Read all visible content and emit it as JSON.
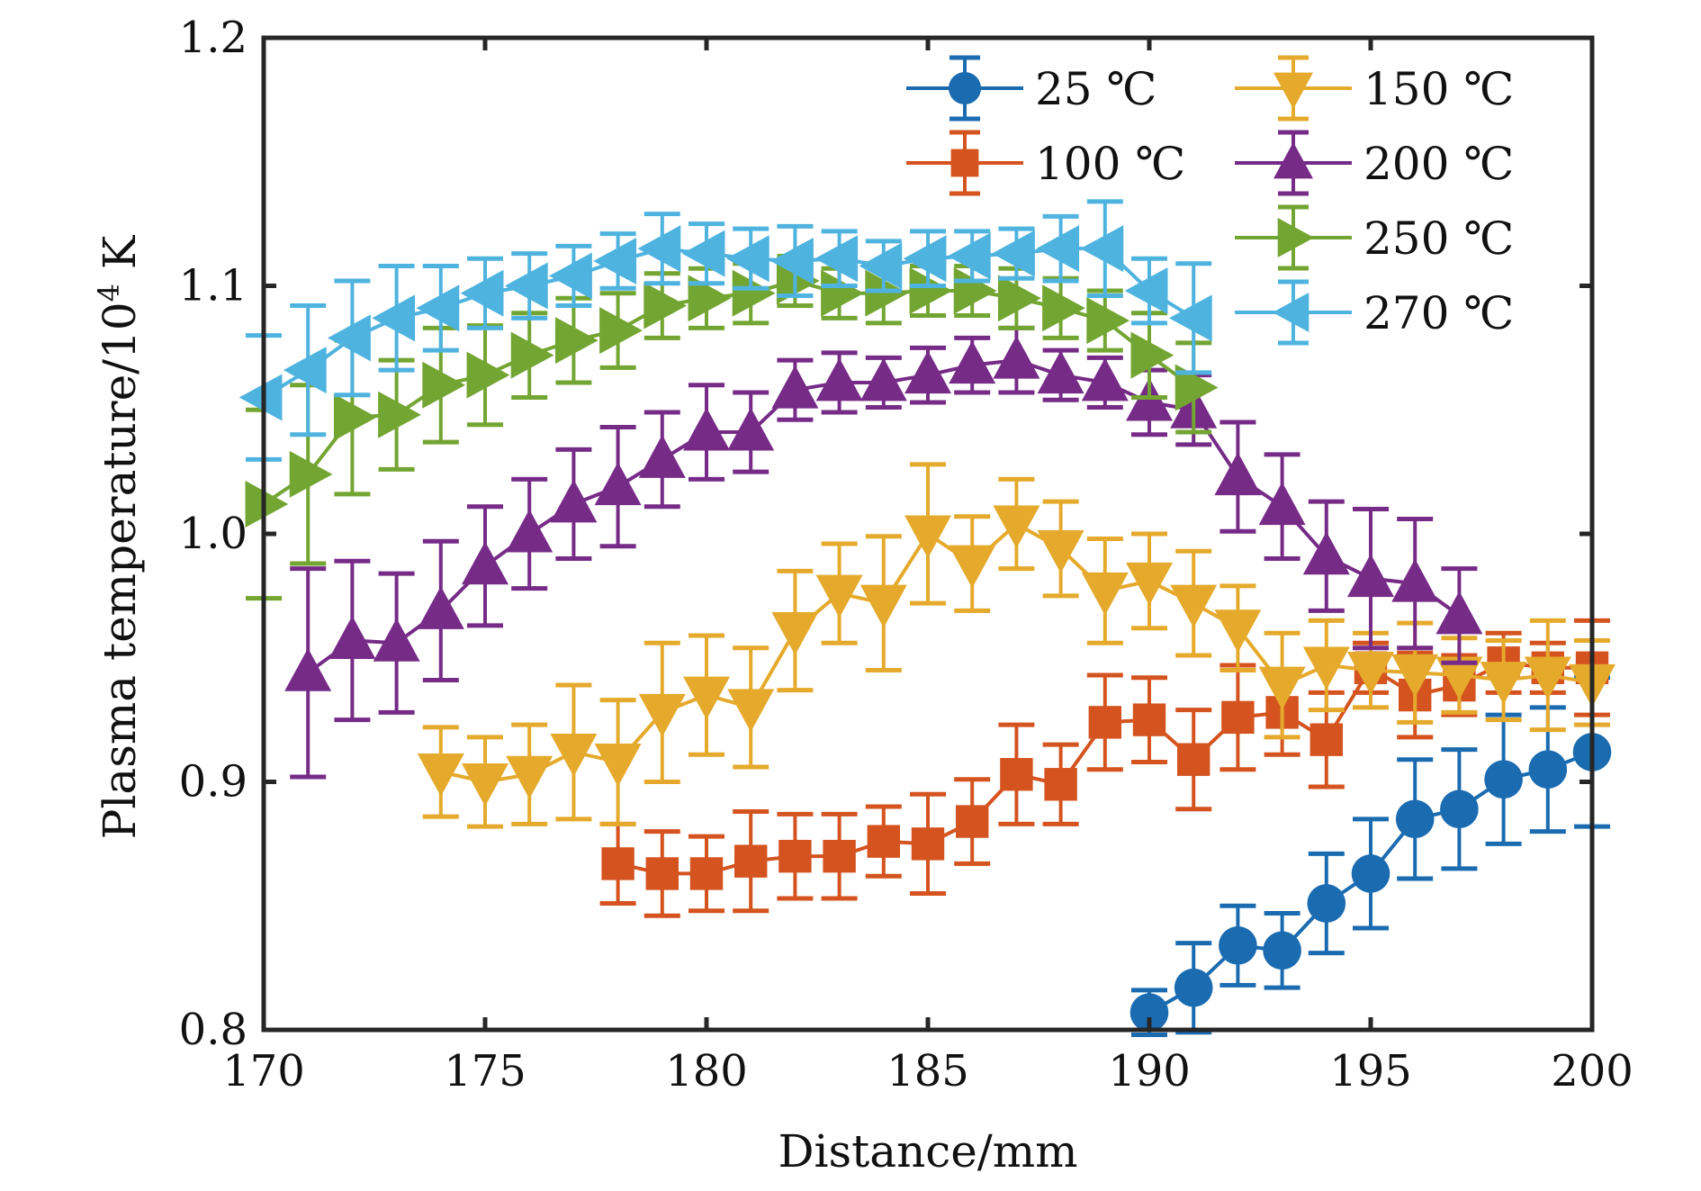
{
  "chart_data": {
    "type": "line",
    "title": "",
    "xlabel": "Distance/mm",
    "ylabel_main": "Plasma temperature/10",
    "ylabel_sup": "4",
    "ylabel_unit": " K",
    "xlim": [
      170,
      200
    ],
    "ylim": [
      0.8,
      1.2
    ],
    "xticks": [
      170,
      175,
      180,
      185,
      190,
      195,
      200
    ],
    "xtick_labels": [
      "170",
      "175",
      "180",
      "185",
      "190",
      "195",
      "200"
    ],
    "yticks": [
      0.8,
      0.9,
      1.0,
      1.1,
      1.2
    ],
    "ytick_labels": [
      "0.8",
      "0.9",
      "1.0",
      "1.1",
      "1.2"
    ],
    "grid": false,
    "legend_position": "top-right",
    "legend_columns": 2,
    "series": [
      {
        "name": "25 ℃",
        "color": "#1a6bb0",
        "marker": "circle",
        "x": [
          190,
          191,
          192,
          193,
          194,
          195,
          196,
          197,
          198,
          199,
          200
        ],
        "y": [
          0.807,
          0.817,
          0.834,
          0.832,
          0.851,
          0.863,
          0.885,
          0.889,
          0.901,
          0.905,
          0.912
        ],
        "err": [
          0.009,
          0.018,
          0.016,
          0.015,
          0.02,
          0.022,
          0.024,
          0.024,
          0.026,
          0.025,
          0.03
        ]
      },
      {
        "name": "100 ℃",
        "color": "#d4531f",
        "marker": "square",
        "x": [
          178,
          179,
          180,
          181,
          182,
          183,
          184,
          185,
          186,
          187,
          188,
          189,
          190,
          191,
          192,
          193,
          194,
          195,
          196,
          197,
          198,
          199,
          200
        ],
        "y": [
          0.867,
          0.863,
          0.863,
          0.868,
          0.87,
          0.87,
          0.876,
          0.875,
          0.884,
          0.903,
          0.899,
          0.924,
          0.925,
          0.909,
          0.926,
          0.928,
          0.917,
          0.946,
          0.935,
          0.939,
          0.948,
          0.946,
          0.946
        ],
        "err": [
          0.016,
          0.017,
          0.015,
          0.02,
          0.017,
          0.017,
          0.014,
          0.02,
          0.017,
          0.02,
          0.016,
          0.019,
          0.017,
          0.02,
          0.021,
          0.017,
          0.019,
          0.01,
          0.017,
          0.012,
          0.012,
          0.01,
          0.019
        ]
      },
      {
        "name": "150 ℃",
        "color": "#e5aa2c",
        "marker": "triangle-down",
        "x": [
          174,
          175,
          176,
          177,
          178,
          179,
          180,
          181,
          182,
          183,
          184,
          185,
          186,
          187,
          188,
          189,
          190,
          191,
          192,
          193,
          194,
          195,
          196,
          197,
          198,
          199,
          200
        ],
        "y": [
          0.904,
          0.9,
          0.903,
          0.912,
          0.908,
          0.928,
          0.935,
          0.93,
          0.961,
          0.976,
          0.972,
          1.0,
          0.988,
          1.004,
          0.994,
          0.977,
          0.981,
          0.972,
          0.962,
          0.939,
          0.947,
          0.945,
          0.944,
          0.943,
          0.941,
          0.943,
          0.94
        ],
        "err": [
          0.018,
          0.018,
          0.02,
          0.027,
          0.025,
          0.028,
          0.024,
          0.024,
          0.024,
          0.02,
          0.027,
          0.028,
          0.019,
          0.018,
          0.019,
          0.021,
          0.019,
          0.021,
          0.017,
          0.021,
          0.018,
          0.015,
          0.02,
          0.015,
          0.016,
          0.022,
          0.017
        ]
      },
      {
        "name": "200 ℃",
        "color": "#762b87",
        "marker": "triangle-up",
        "x": [
          171,
          172,
          173,
          174,
          175,
          176,
          177,
          178,
          179,
          180,
          181,
          182,
          183,
          184,
          185,
          186,
          187,
          188,
          189,
          190,
          191,
          192,
          193,
          194,
          195,
          196,
          197
        ],
        "y": [
          0.944,
          0.957,
          0.956,
          0.969,
          0.987,
          1.0,
          1.012,
          1.019,
          1.03,
          1.041,
          1.041,
          1.058,
          1.061,
          1.061,
          1.064,
          1.068,
          1.07,
          1.064,
          1.061,
          1.053,
          1.05,
          1.023,
          1.011,
          0.991,
          0.982,
          0.98,
          0.967
        ],
        "err": [
          0.042,
          0.032,
          0.028,
          0.028,
          0.024,
          0.022,
          0.022,
          0.024,
          0.019,
          0.019,
          0.016,
          0.012,
          0.012,
          0.01,
          0.011,
          0.011,
          0.013,
          0.01,
          0.01,
          0.013,
          0.014,
          0.022,
          0.021,
          0.022,
          0.028,
          0.026,
          0.019
        ]
      },
      {
        "name": "250 ℃",
        "color": "#73a532",
        "marker": "triangle-right",
        "x": [
          170,
          171,
          172,
          173,
          174,
          175,
          176,
          177,
          178,
          179,
          180,
          181,
          182,
          183,
          184,
          185,
          186,
          187,
          188,
          189,
          190,
          191
        ],
        "y": [
          1.012,
          1.024,
          1.047,
          1.048,
          1.06,
          1.064,
          1.072,
          1.078,
          1.082,
          1.092,
          1.095,
          1.097,
          1.102,
          1.097,
          1.097,
          1.098,
          1.098,
          1.095,
          1.091,
          1.086,
          1.072,
          1.059
        ],
        "err": [
          0.038,
          0.036,
          0.031,
          0.022,
          0.023,
          0.02,
          0.017,
          0.017,
          0.015,
          0.013,
          0.012,
          0.012,
          0.01,
          0.01,
          0.012,
          0.01,
          0.01,
          0.012,
          0.012,
          0.012,
          0.017,
          0.018
        ]
      },
      {
        "name": "270 ℃",
        "color": "#4fb3df",
        "marker": "triangle-left",
        "x": [
          170,
          171,
          172,
          173,
          174,
          175,
          176,
          177,
          178,
          179,
          180,
          181,
          182,
          183,
          184,
          185,
          186,
          187,
          188,
          189,
          190,
          191
        ],
        "y": [
          1.055,
          1.066,
          1.079,
          1.087,
          1.091,
          1.097,
          1.1,
          1.104,
          1.11,
          1.115,
          1.113,
          1.111,
          1.11,
          1.111,
          1.108,
          1.111,
          1.112,
          1.113,
          1.115,
          1.115,
          1.098,
          1.087
        ],
        "err": [
          0.025,
          0.026,
          0.023,
          0.021,
          0.017,
          0.014,
          0.013,
          0.012,
          0.011,
          0.014,
          0.012,
          0.012,
          0.014,
          0.011,
          0.01,
          0.011,
          0.01,
          0.01,
          0.013,
          0.019,
          0.013,
          0.022
        ]
      }
    ]
  }
}
